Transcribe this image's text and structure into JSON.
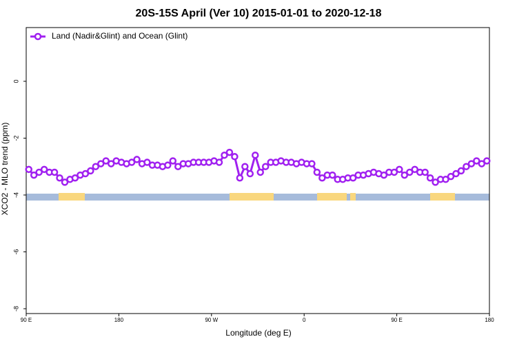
{
  "chart_data": {
    "type": "line",
    "title": "20S-15S April (Ver 10)   2015-01-01 to 2020-12-18",
    "x_label": "Longitude (deg E)",
    "y_label": "XCO2 - MLO trend (ppm)",
    "xlim": [
      90,
      540
    ],
    "ylim": [
      -8.17,
      1.89
    ],
    "xticks": [
      {
        "value": 90,
        "label": "90 E"
      },
      180,
      {
        "value": 270,
        "label": "90 W"
      },
      {
        "value": 360,
        "label": "0"
      },
      {
        "value": 450,
        "label": "90 E"
      },
      {
        "value": 540,
        "label": "180"
      }
    ],
    "yticks": [
      -8,
      -6,
      -4,
      -2,
      0
    ],
    "legend": "top-left",
    "x": [
      92.5,
      97.5,
      102.5,
      107.5,
      112.5,
      117.5,
      122.5,
      127.5,
      132.5,
      137.5,
      142.5,
      147.5,
      152.5,
      157.5,
      162.5,
      167.5,
      172.5,
      177.5,
      182.5,
      187.5,
      192.5,
      197.5,
      202.5,
      207.5,
      212.5,
      217.5,
      222.5,
      227.5,
      232.5,
      237.5,
      242.5,
      247.5,
      252.5,
      257.5,
      262.5,
      267.5,
      272.5,
      277.5,
      282.5,
      287.5,
      292.5,
      297.5,
      302.5,
      307.5,
      312.5,
      317.5,
      322.5,
      327.5,
      332.5,
      337.5,
      342.5,
      347.5,
      352.5,
      357.5,
      362.5,
      367.5,
      372.5,
      377.5,
      382.5,
      387.5,
      392.5,
      397.5,
      402.5,
      407.5,
      412.5,
      417.5,
      422.5,
      427.5,
      432.5,
      437.5,
      442.5,
      447.5,
      452.5,
      457.5,
      462.5,
      467.5,
      472.5,
      477.5,
      482.5,
      487.5,
      492.5,
      497.5,
      502.5,
      507.5,
      512.5,
      517.5,
      522.5,
      527.5,
      532.5,
      537.5
    ],
    "series": [
      {
        "name": "Land (Nadir&Glint) and Ocean (Glint)",
        "color": "#a020f0",
        "values": [
          -3.1,
          -3.3,
          -3.2,
          -3.1,
          -3.2,
          -3.2,
          -3.4,
          -3.55,
          -3.45,
          -3.4,
          -3.3,
          -3.25,
          -3.15,
          -3.0,
          -2.9,
          -2.8,
          -2.9,
          -2.8,
          -2.85,
          -2.9,
          -2.85,
          -2.75,
          -2.9,
          -2.85,
          -2.95,
          -2.95,
          -3.0,
          -2.95,
          -2.8,
          -3.0,
          -2.9,
          -2.9,
          -2.85,
          -2.85,
          -2.85,
          -2.85,
          -2.8,
          -2.85,
          -2.6,
          -2.5,
          -2.65,
          -3.4,
          -3.0,
          -3.25,
          -2.6,
          -3.2,
          -3.0,
          -2.85,
          -2.85,
          -2.8,
          -2.85,
          -2.85,
          -2.9,
          -2.85,
          -2.9,
          -2.9,
          -3.2,
          -3.4,
          -3.3,
          -3.3,
          -3.45,
          -3.45,
          -3.4,
          -3.4,
          -3.3,
          -3.3,
          -3.25,
          -3.2,
          -3.25,
          -3.3,
          -3.2,
          -3.2,
          -3.1,
          -3.3,
          -3.2,
          -3.1,
          -3.2,
          -3.2,
          -3.4,
          -3.55,
          -3.45,
          -3.45,
          -3.35,
          -3.25,
          -3.15,
          -3.0,
          -2.9,
          -2.8,
          -2.9,
          -2.8
        ]
      }
    ]
  }
}
